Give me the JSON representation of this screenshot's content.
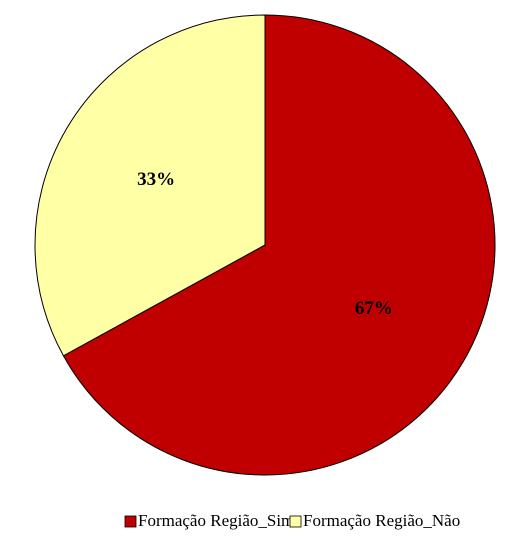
{
  "chart_data": {
    "type": "pie",
    "categories": [
      "Formação Região_Sim",
      "Formação Região_Não"
    ],
    "values": [
      67,
      33
    ],
    "value_labels": [
      "67%",
      "33%"
    ],
    "colors": [
      "#c00000",
      "#ffffa6"
    ]
  }
}
